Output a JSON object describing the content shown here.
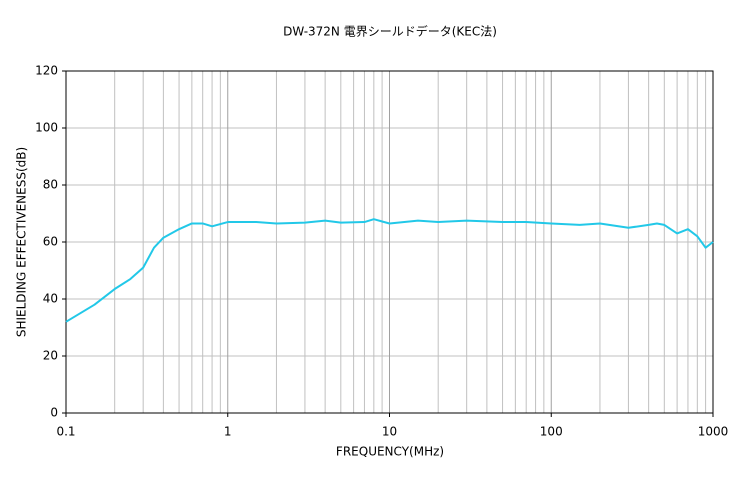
{
  "chart_data": {
    "type": "line",
    "title": "DW-372N 電界シールドデータ(KEC法)",
    "x_label": "FREQUENCY(MHz)",
    "y_label": "SHIELDING EFFECTIVENESS(dB)",
    "log_x": true,
    "grid": true,
    "xlim": [
      0.1,
      1000
    ],
    "xticks": [
      0.1,
      1,
      10,
      100,
      1000
    ],
    "ylim": [
      0,
      120
    ],
    "yticks": [
      0,
      20,
      40,
      60,
      80,
      100,
      120
    ],
    "x": [
      0.1,
      0.15,
      0.2,
      0.25,
      0.3,
      0.35,
      0.4,
      0.5,
      0.6,
      0.7,
      0.8,
      1,
      1.5,
      2,
      3,
      4,
      5,
      7,
      8,
      10,
      15,
      20,
      30,
      50,
      70,
      100,
      150,
      200,
      300,
      400,
      450,
      500,
      600,
      700,
      800,
      900,
      1000
    ],
    "series": [
      {
        "name": "DW-372N",
        "color": "#22c8e8",
        "values": [
          32,
          38,
          43.5,
          47,
          51,
          58,
          61.5,
          64.5,
          66.5,
          66.5,
          65.5,
          67,
          67,
          66.5,
          66.8,
          67.5,
          66.8,
          67,
          68,
          66.5,
          67.5,
          67,
          67.5,
          67,
          67,
          66.5,
          66,
          66.5,
          65,
          66,
          66.5,
          66,
          63,
          64.5,
          62,
          58,
          60
        ]
      }
    ]
  }
}
